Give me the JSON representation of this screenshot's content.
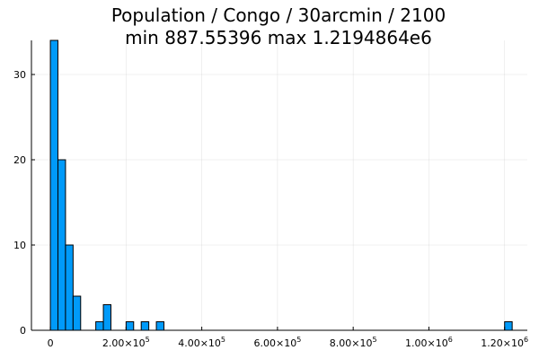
{
  "chart_data": {
    "type": "bar",
    "title": "Population / Congo / 30arcmin / 2100",
    "subtitle": "min 887.55396  max 1.2194864e6",
    "xlabel": "",
    "ylabel": "",
    "bin_width": 20000,
    "xlim": [
      -50000,
      1260000
    ],
    "ylim": [
      0,
      34
    ],
    "grid": true,
    "legend": "none",
    "bar_color": "#009af9",
    "bins": [
      {
        "x0": 0,
        "x1": 20000,
        "count": 34
      },
      {
        "x0": 20000,
        "x1": 40000,
        "count": 20
      },
      {
        "x0": 40000,
        "x1": 60000,
        "count": 10
      },
      {
        "x0": 60000,
        "x1": 80000,
        "count": 4
      },
      {
        "x0": 120000,
        "x1": 140000,
        "count": 1
      },
      {
        "x0": 140000,
        "x1": 160000,
        "count": 3
      },
      {
        "x0": 200000,
        "x1": 220000,
        "count": 1
      },
      {
        "x0": 240000,
        "x1": 260000,
        "count": 1
      },
      {
        "x0": 280000,
        "x1": 300000,
        "count": 1
      },
      {
        "x0": 1200000,
        "x1": 1220000,
        "count": 1
      }
    ],
    "x_ticks": [
      {
        "value": 0,
        "mantissa": "0",
        "exponent": ""
      },
      {
        "value": 200000,
        "mantissa": "2.00×10",
        "exponent": "5"
      },
      {
        "value": 400000,
        "mantissa": "4.00×10",
        "exponent": "5"
      },
      {
        "value": 600000,
        "mantissa": "6.00×10",
        "exponent": "5"
      },
      {
        "value": 800000,
        "mantissa": "8.00×10",
        "exponent": "5"
      },
      {
        "value": 1000000,
        "mantissa": "1.00×10",
        "exponent": "6"
      },
      {
        "value": 1200000,
        "mantissa": "1.20×10",
        "exponent": "6"
      }
    ],
    "y_ticks": [
      {
        "value": 0,
        "label": "0"
      },
      {
        "value": 10,
        "label": "10"
      },
      {
        "value": 20,
        "label": "20"
      },
      {
        "value": 30,
        "label": "30"
      }
    ]
  }
}
